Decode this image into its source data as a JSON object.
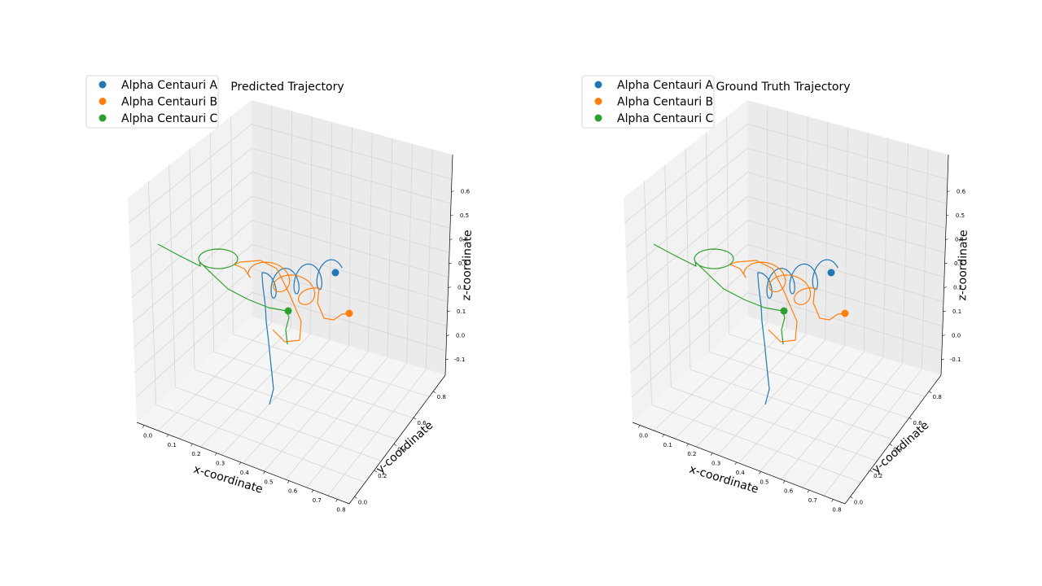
{
  "chart_data": [
    {
      "type": "line3d",
      "title": "Predicted Trajectory",
      "xlabel": "x-coordinate",
      "ylabel": "y-coordinate",
      "zlabel": "z-coordinate",
      "xlim": [
        -0.03,
        0.85
      ],
      "ylim": [
        -0.05,
        0.92
      ],
      "zlim": [
        -0.15,
        0.7
      ],
      "xticks": [
        "0.0",
        "0.1",
        "0.2",
        "0.3",
        "0.4",
        "0.5",
        "0.6",
        "0.7",
        "0.8"
      ],
      "yticks": [
        "0.0",
        "0.2",
        "0.4",
        "0.6",
        "0.8"
      ],
      "zticks": [
        "-0.1",
        "0.0",
        "0.1",
        "0.2",
        "0.3",
        "0.4",
        "0.5",
        "0.6"
      ],
      "legend": [
        "Alpha Centauri A",
        "Alpha Centauri B",
        "Alpha Centauri C"
      ],
      "series": [
        {
          "name": "Alpha Centauri A",
          "color": "#1f77b4"
        },
        {
          "name": "Alpha Centauri B",
          "color": "#ff7f0e"
        },
        {
          "name": "Alpha Centauri C",
          "color": "#2ca02c"
        }
      ],
      "grid": true
    },
    {
      "type": "line3d",
      "title": "Ground Truth Trajectory",
      "xlabel": "x-coordinate",
      "ylabel": "y-coordinate",
      "zlabel": "z-coordinate",
      "xlim": [
        -0.03,
        0.85
      ],
      "ylim": [
        -0.05,
        0.92
      ],
      "zlim": [
        -0.15,
        0.7
      ],
      "xticks": [
        "0.0",
        "0.1",
        "0.2",
        "0.3",
        "0.4",
        "0.5",
        "0.6",
        "0.7",
        "0.8"
      ],
      "yticks": [
        "0.0",
        "0.2",
        "0.4",
        "0.6",
        "0.8"
      ],
      "zticks": [
        "-0.1",
        "0.0",
        "0.1",
        "0.2",
        "0.3",
        "0.4",
        "0.5",
        "0.6"
      ],
      "legend": [
        "Alpha Centauri A",
        "Alpha Centauri B",
        "Alpha Centauri C"
      ],
      "series": [
        {
          "name": "Alpha Centauri A",
          "color": "#1f77b4"
        },
        {
          "name": "Alpha Centauri B",
          "color": "#ff7f0e"
        },
        {
          "name": "Alpha Centauri C",
          "color": "#2ca02c"
        }
      ],
      "grid": true
    }
  ]
}
